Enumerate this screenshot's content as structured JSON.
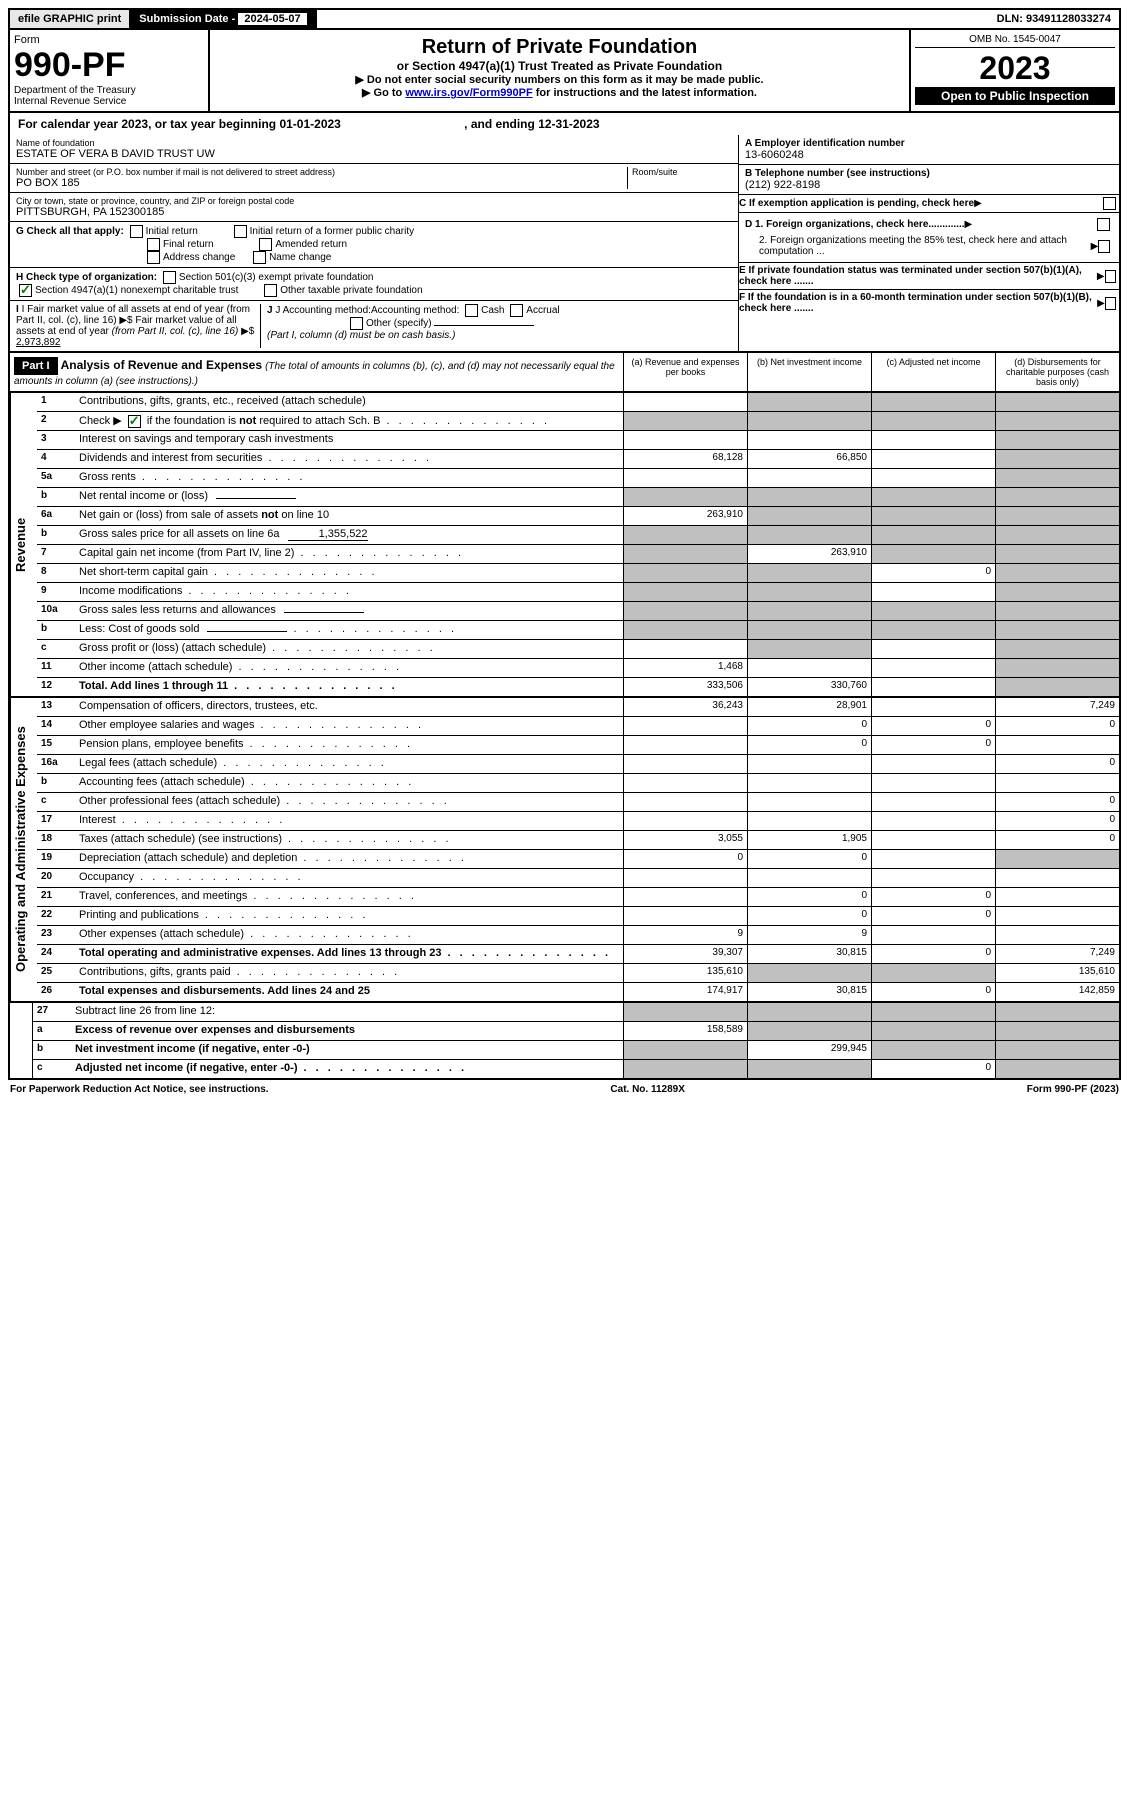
{
  "topbar": {
    "efile": "efile GRAPHIC print",
    "subdate_label": "Submission Date - ",
    "subdate": "2024-05-07",
    "dln": "DLN: 93491128033274"
  },
  "header": {
    "form_word": "Form",
    "form_num": "990-PF",
    "dept": "Department of the Treasury\nInternal Revenue Service",
    "title": "Return of Private Foundation",
    "subtitle": "or Section 4947(a)(1) Trust Treated as Private Foundation",
    "note1": "▶ Do not enter social security numbers on this form as it may be made public.",
    "note2_pre": "▶ Go to ",
    "note2_link": "www.irs.gov/Form990PF",
    "note2_post": " for instructions and the latest information.",
    "omb": "OMB No. 1545-0047",
    "year": "2023",
    "open": "Open to Public Inspection"
  },
  "calyear": {
    "pre": "For calendar year 2023, or tax year beginning ",
    "begin": "01-01-2023",
    "mid": " , and ending ",
    "end": "12-31-2023"
  },
  "info": {
    "name_label": "Name of foundation",
    "name": "ESTATE OF VERA B DAVID TRUST UW",
    "addr_label": "Number and street (or P.O. box number if mail is not delivered to street address)",
    "addr": "PO BOX 185",
    "room_label": "Room/suite",
    "city_label": "City or town, state or province, country, and ZIP or foreign postal code",
    "city": "PITTSBURGH, PA  152300185",
    "ein_label": "A Employer identification number",
    "ein": "13-6060248",
    "tel_label": "B Telephone number (see instructions)",
    "tel": "(212) 922-8198",
    "c_label": "C If exemption application is pending, check here",
    "d1": "D 1. Foreign organizations, check here.............",
    "d2": "2. Foreign organizations meeting the 85% test, check here and attach computation ...",
    "e": "E  If private foundation status was terminated under section 507(b)(1)(A), check here .......",
    "f": "F  If the foundation is in a 60-month termination under section 507(b)(1)(B), check here .......",
    "g_label": "G Check all that apply:",
    "g_opts": [
      "Initial return",
      "Initial return of a former public charity",
      "Final return",
      "Amended return",
      "Address change",
      "Name change"
    ],
    "h_label": "H Check type of organization:",
    "h1": "Section 501(c)(3) exempt private foundation",
    "h2": "Section 4947(a)(1) nonexempt charitable trust",
    "h3": "Other taxable private foundation",
    "i_label": "I Fair market value of all assets at end of year (from Part II, col. (c), line 16) ▶$ ",
    "i_val": "2,973,892",
    "j_label": "J Accounting method:",
    "j_cash": "Cash",
    "j_accrual": "Accrual",
    "j_other": "Other (specify)",
    "j_note": "(Part I, column (d) must be on cash basis.)"
  },
  "part1": {
    "label": "Part I",
    "title": "Analysis of Revenue and Expenses",
    "note": "(The total of amounts in columns (b), (c), and (d) may not necessarily equal the amounts in column (a) (see instructions).)",
    "col_a": "(a)   Revenue and expenses per books",
    "col_b": "(b)   Net investment income",
    "col_c": "(c)   Adjusted net income",
    "col_d": "(d)   Disbursements for charitable purposes (cash basis only)"
  },
  "sides": {
    "revenue": "Revenue",
    "expenses": "Operating and Administrative Expenses"
  },
  "rows": [
    {
      "n": "1",
      "l": "Contributions, gifts, grants, etc., received (attach schedule)",
      "a": "",
      "b": "g",
      "c": "g",
      "d": "g"
    },
    {
      "n": "2",
      "l": "Check ▶ ☑ if the foundation is not required to attach Sch. B",
      "dotted": true,
      "a": "g",
      "b": "g",
      "c": "g",
      "d": "g"
    },
    {
      "n": "3",
      "l": "Interest on savings and temporary cash investments",
      "a": "",
      "b": "",
      "c": "",
      "d": "g"
    },
    {
      "n": "4",
      "l": "Dividends and interest from securities",
      "dotted": true,
      "a": "68,128",
      "b": "66,850",
      "c": "",
      "d": "g"
    },
    {
      "n": "5a",
      "l": "Gross rents",
      "dotted": true,
      "a": "",
      "b": "",
      "c": "",
      "d": "g"
    },
    {
      "n": "b",
      "l": "Net rental income or (loss)",
      "box": "",
      "a": "g",
      "b": "g",
      "c": "g",
      "d": "g"
    },
    {
      "n": "6a",
      "l": "Net gain or (loss) from sale of assets not on line 10",
      "a": "263,910",
      "b": "g",
      "c": "g",
      "d": "g"
    },
    {
      "n": "b",
      "l": "Gross sales price for all assets on line 6a",
      "box": "1,355,522",
      "a": "g",
      "b": "g",
      "c": "g",
      "d": "g"
    },
    {
      "n": "7",
      "l": "Capital gain net income (from Part IV, line 2)",
      "dotted": true,
      "a": "g",
      "b": "263,910",
      "c": "g",
      "d": "g"
    },
    {
      "n": "8",
      "l": "Net short-term capital gain",
      "dotted": true,
      "a": "g",
      "b": "g",
      "c": "0",
      "d": "g"
    },
    {
      "n": "9",
      "l": "Income modifications",
      "dotted": true,
      "a": "g",
      "b": "g",
      "c": "",
      "d": "g"
    },
    {
      "n": "10a",
      "l": "Gross sales less returns and allowances",
      "box": "",
      "a": "g",
      "b": "g",
      "c": "g",
      "d": "g"
    },
    {
      "n": "b",
      "l": "Less: Cost of goods sold",
      "box": "",
      "dotted": true,
      "a": "g",
      "b": "g",
      "c": "g",
      "d": "g"
    },
    {
      "n": "c",
      "l": "Gross profit or (loss) (attach schedule)",
      "dotted": true,
      "a": "",
      "b": "g",
      "c": "",
      "d": "g"
    },
    {
      "n": "11",
      "l": "Other income (attach schedule)",
      "dotted": true,
      "a": "1,468",
      "b": "",
      "c": "",
      "d": "g"
    },
    {
      "n": "12",
      "l": "Total. Add lines 1 through 11",
      "bold": true,
      "dotted": true,
      "a": "333,506",
      "b": "330,760",
      "c": "",
      "d": "g"
    }
  ],
  "exp_rows": [
    {
      "n": "13",
      "l": "Compensation of officers, directors, trustees, etc.",
      "a": "36,243",
      "b": "28,901",
      "c": "",
      "d": "7,249"
    },
    {
      "n": "14",
      "l": "Other employee salaries and wages",
      "dotted": true,
      "a": "",
      "b": "0",
      "c": "0",
      "d": "0"
    },
    {
      "n": "15",
      "l": "Pension plans, employee benefits",
      "dotted": true,
      "a": "",
      "b": "0",
      "c": "0",
      "d": ""
    },
    {
      "n": "16a",
      "l": "Legal fees (attach schedule)",
      "dotted": true,
      "a": "",
      "b": "",
      "c": "",
      "d": "0"
    },
    {
      "n": "b",
      "l": "Accounting fees (attach schedule)",
      "dotted": true,
      "a": "",
      "b": "",
      "c": "",
      "d": ""
    },
    {
      "n": "c",
      "l": "Other professional fees (attach schedule)",
      "dotted": true,
      "a": "",
      "b": "",
      "c": "",
      "d": "0"
    },
    {
      "n": "17",
      "l": "Interest",
      "dotted": true,
      "a": "",
      "b": "",
      "c": "",
      "d": "0"
    },
    {
      "n": "18",
      "l": "Taxes (attach schedule) (see instructions)",
      "dotted": true,
      "a": "3,055",
      "b": "1,905",
      "c": "",
      "d": "0"
    },
    {
      "n": "19",
      "l": "Depreciation (attach schedule) and depletion",
      "dotted": true,
      "a": "0",
      "b": "0",
      "c": "",
      "d": "g"
    },
    {
      "n": "20",
      "l": "Occupancy",
      "dotted": true,
      "a": "",
      "b": "",
      "c": "",
      "d": ""
    },
    {
      "n": "21",
      "l": "Travel, conferences, and meetings",
      "dotted": true,
      "a": "",
      "b": "0",
      "c": "0",
      "d": ""
    },
    {
      "n": "22",
      "l": "Printing and publications",
      "dotted": true,
      "a": "",
      "b": "0",
      "c": "0",
      "d": ""
    },
    {
      "n": "23",
      "l": "Other expenses (attach schedule)",
      "dotted": true,
      "a": "9",
      "b": "9",
      "c": "",
      "d": ""
    },
    {
      "n": "24",
      "l": "Total operating and administrative expenses. Add lines 13 through 23",
      "bold": true,
      "dotted": true,
      "a": "39,307",
      "b": "30,815",
      "c": "0",
      "d": "7,249"
    },
    {
      "n": "25",
      "l": "Contributions, gifts, grants paid",
      "dotted": true,
      "a": "135,610",
      "b": "g",
      "c": "g",
      "d": "135,610"
    },
    {
      "n": "26",
      "l": "Total expenses and disbursements. Add lines 24 and 25",
      "bold": true,
      "a": "174,917",
      "b": "30,815",
      "c": "0",
      "d": "142,859"
    }
  ],
  "final_rows": [
    {
      "n": "27",
      "l": "Subtract line 26 from line 12:",
      "a": "g",
      "b": "g",
      "c": "g",
      "d": "g"
    },
    {
      "n": "a",
      "l": "Excess of revenue over expenses and disbursements",
      "bold": true,
      "a": "158,589",
      "b": "g",
      "c": "g",
      "d": "g"
    },
    {
      "n": "b",
      "l": "Net investment income (if negative, enter -0-)",
      "bold": true,
      "a": "g",
      "b": "299,945",
      "c": "g",
      "d": "g"
    },
    {
      "n": "c",
      "l": "Adjusted net income (if negative, enter -0-)",
      "bold": true,
      "dotted": true,
      "a": "g",
      "b": "g",
      "c": "0",
      "d": "g"
    }
  ],
  "footer": {
    "left": "For Paperwork Reduction Act Notice, see instructions.",
    "mid": "Cat. No. 11289X",
    "right": "Form 990-PF (2023)"
  }
}
